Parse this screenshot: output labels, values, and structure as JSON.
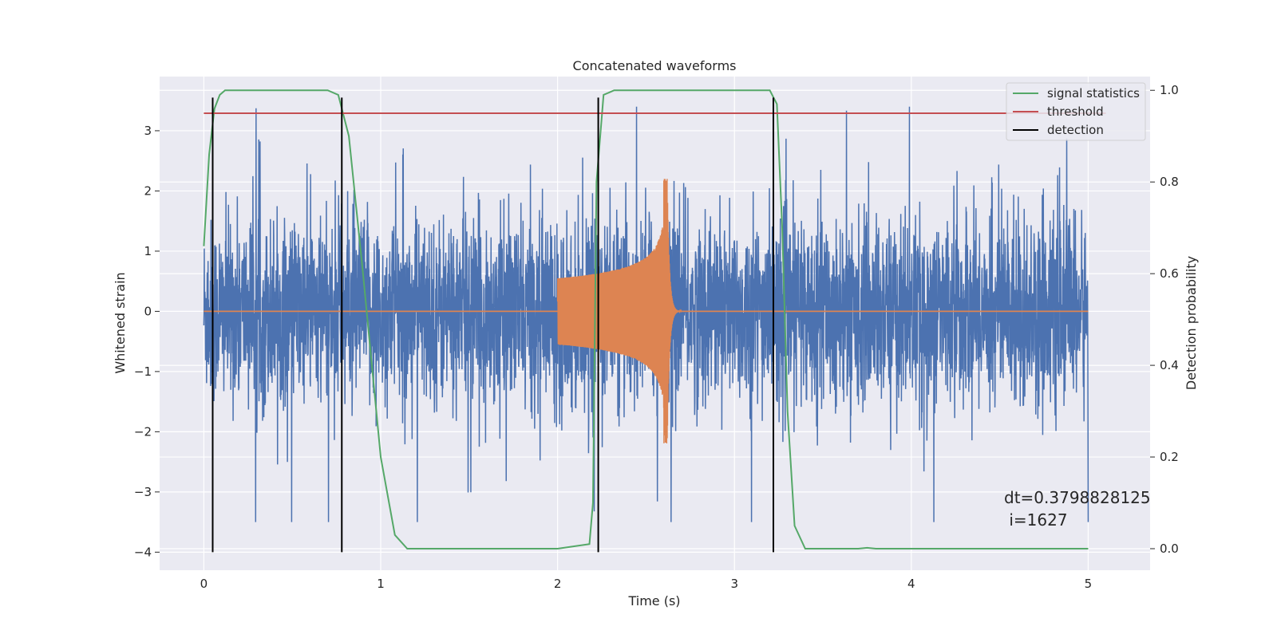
{
  "chart_data": {
    "type": "line",
    "title": "Concatenated waveforms",
    "xlabel": "Time (s)",
    "ylabel": "Whitened strain",
    "ylabel_right": "Detection probability",
    "xlim": [
      -0.25,
      5.35
    ],
    "ylim": [
      -4.3,
      3.9
    ],
    "ylim_right": [
      -0.047,
      1.03
    ],
    "x_ticks": [
      0,
      1,
      2,
      3,
      4,
      5
    ],
    "x_tick_labels": [
      "0",
      "1",
      "2",
      "3",
      "4",
      "5"
    ],
    "y_ticks": [
      -4,
      -3,
      -2,
      -1,
      0,
      1,
      2,
      3
    ],
    "y_tick_labels": [
      "−4",
      "−3",
      "−2",
      "−1",
      "0",
      "1",
      "2",
      "3"
    ],
    "y2_ticks": [
      0.0,
      0.2,
      0.4,
      0.6,
      0.8,
      1.0
    ],
    "y2_tick_labels": [
      "0.0",
      "0.2",
      "0.4",
      "0.6",
      "0.8",
      "1.0"
    ],
    "grid": true,
    "legend_position": "top-right",
    "series": [
      {
        "name": "",
        "kind": "noise",
        "color": "#4c72b0",
        "x_range": [
          0,
          5
        ],
        "envelope_y": [
          -3.5,
          3.4
        ]
      },
      {
        "name": "",
        "kind": "chirp",
        "color": "#dd8452",
        "x_range": [
          2,
          2.7
        ],
        "baseline_x_range": [
          0,
          5
        ],
        "peak_time": 2.62,
        "peak_y": [
          -2.3,
          2.25
        ]
      },
      {
        "name": "signal statistics",
        "color": "#55a868",
        "axis": "right",
        "x": [
          0,
          0.03,
          0.06,
          0.09,
          0.12,
          0.2,
          0.7,
          0.76,
          0.82,
          0.9,
          1.0,
          1.08,
          1.15,
          2.0,
          2.18,
          2.2,
          2.22,
          2.26,
          2.32,
          3.2,
          3.24,
          3.27,
          3.3,
          3.34,
          3.4,
          3.7,
          3.75,
          3.8,
          4.0,
          5.0
        ],
        "y": [
          0.66,
          0.86,
          0.96,
          0.99,
          1.0,
          1.0,
          1.0,
          0.99,
          0.9,
          0.6,
          0.2,
          0.03,
          0.0,
          0.0,
          0.01,
          0.1,
          0.8,
          0.99,
          1.0,
          1.0,
          0.97,
          0.7,
          0.3,
          0.05,
          0.0,
          0.0,
          0.002,
          0.0,
          0.0,
          0.0
        ]
      },
      {
        "name": "threshold",
        "color": "#c44e52",
        "axis": "right",
        "x": [
          0,
          5.1
        ],
        "y": [
          0.95,
          0.95
        ]
      },
      {
        "name": "detection",
        "color": "#000000",
        "type": "vlines",
        "x": [
          0.05,
          0.78,
          2.23,
          3.22
        ],
        "y_range": [
          -4.0,
          3.55
        ]
      }
    ],
    "annotation": "dt=0.3798828125\n i=1627"
  },
  "colors": {
    "background": "#eaeaf2",
    "grid": "#ffffff",
    "text": "#262626"
  }
}
